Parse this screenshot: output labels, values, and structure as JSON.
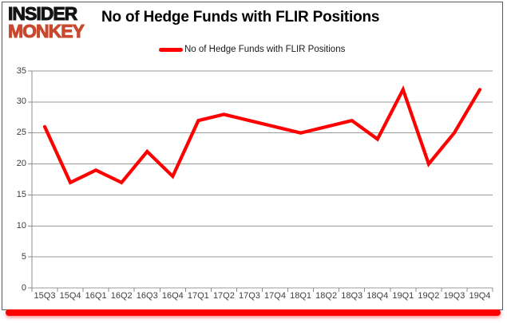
{
  "logo": {
    "line1": "INSIDER",
    "line2": "MONKEY"
  },
  "header": {
    "title": "No of Hedge Funds with FLIR Positions"
  },
  "legend": {
    "label": "No of Hedge Funds with FLIR Positions"
  },
  "colors": {
    "line": "#fe0000",
    "underline_bar": "#fe0000",
    "logo_black": "#141414",
    "logo_red": "#c8492e",
    "gridline": "#9a9a9a",
    "axis": "#8c8c8c",
    "axis_label": "#3d3d3d",
    "title_text": "#000000",
    "frame_border": "#5a5a5a"
  },
  "chart_data": {
    "type": "line",
    "title": "No of Hedge Funds with FLIR Positions",
    "categories": [
      "15Q3",
      "15Q4",
      "16Q1",
      "16Q2",
      "16Q3",
      "16Q4",
      "17Q1",
      "17Q2",
      "17Q3",
      "17Q4",
      "18Q1",
      "18Q2",
      "18Q3",
      "18Q4",
      "19Q1",
      "19Q2",
      "19Q3",
      "19Q4"
    ],
    "series": [
      {
        "name": "No of Hedge Funds with FLIR Positions",
        "color": "#fe0000",
        "values": [
          26,
          17,
          19,
          17,
          22,
          18,
          27,
          28,
          27,
          26,
          25,
          26,
          27,
          24,
          32,
          20,
          25,
          32
        ]
      }
    ],
    "xlabel": "",
    "ylabel": "",
    "ylim": [
      0,
      35
    ],
    "y_ticks": [
      0,
      5,
      10,
      15,
      20,
      25,
      30,
      35
    ],
    "grid": "horizontal-only",
    "legend_position": "top-center"
  }
}
